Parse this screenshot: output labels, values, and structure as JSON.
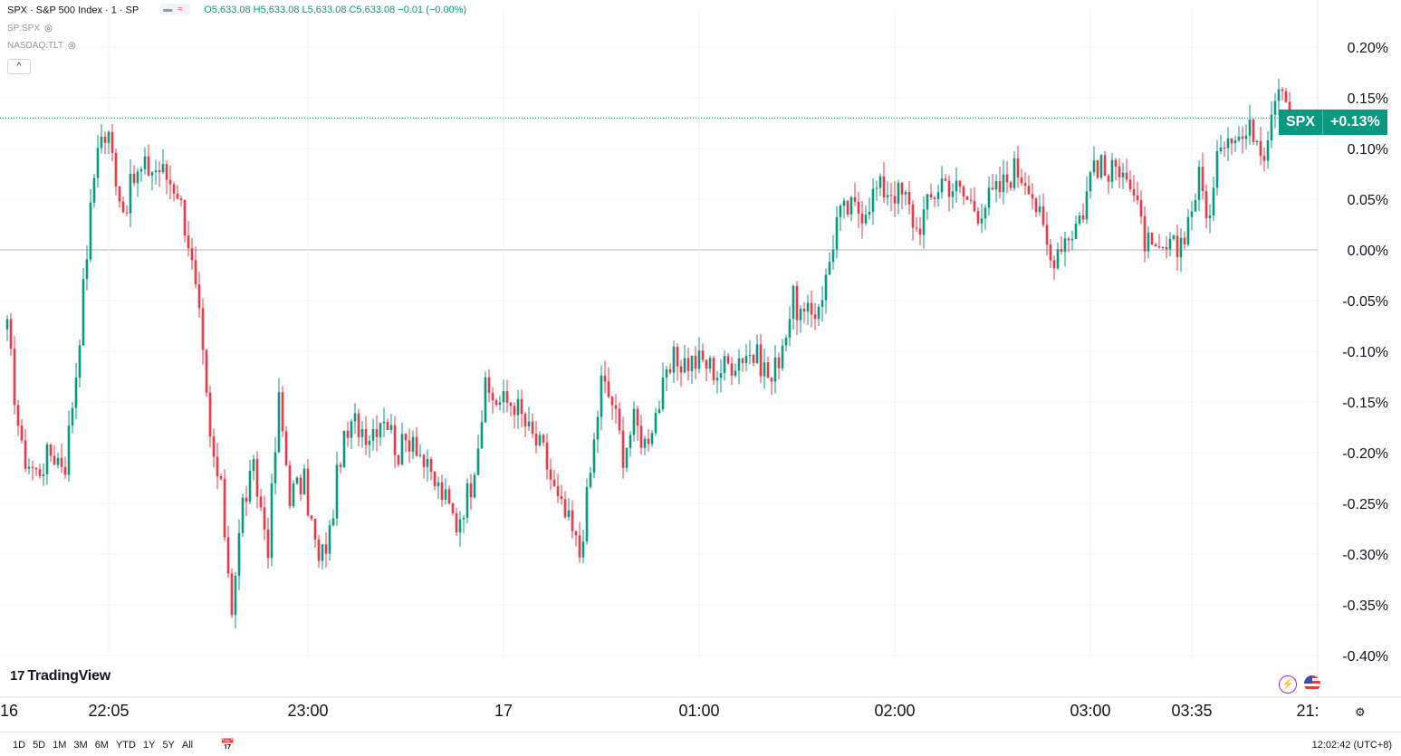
{
  "legend": {
    "symbol": "SPX · S&P 500 Index · 1 · SP",
    "ohlc": "O5,633.08 H5,633.08 L5,633.08 C5,633.08 −0.01 (−0.00%)",
    "pill": "≈",
    "sub1": "SP:SPX",
    "sub2": "NASDAQ:TLT",
    "collapse": "^"
  },
  "price_label": {
    "symbol": "SPX",
    "value": "+0.13%"
  },
  "logo": {
    "mark": "17",
    "name": "TradingView"
  },
  "ranges": [
    "1D",
    "5D",
    "1M",
    "3M",
    "6M",
    "YTD",
    "1Y",
    "5Y",
    "All"
  ],
  "clock": "12:02:42 (UTC+8)",
  "colors": {
    "up": "#089981",
    "down": "#f23645",
    "grid": "#f0f3fa",
    "text": "#131722"
  },
  "chart_data": {
    "type": "candlestick",
    "unit": "%",
    "ylim": [
      -0.42,
      0.215
    ],
    "y_ticks": [
      0.2,
      0.15,
      0.1,
      0.05,
      0.0,
      -0.05,
      -0.1,
      -0.15,
      -0.2,
      -0.25,
      -0.3,
      -0.35,
      -0.4
    ],
    "y_tick_labels": [
      "0.20%",
      "0.15%",
      "0.10%",
      "0.05%",
      "0.00%",
      "-0.05%",
      "-0.10%",
      "-0.15%",
      "-0.20%",
      "-0.25%",
      "-0.30%",
      "-0.35%",
      "-0.40%"
    ],
    "x_tick_labels": [
      {
        "label": "16",
        "bar": 0
      },
      {
        "label": "22:05",
        "bar": 28
      },
      {
        "label": "23:00",
        "bar": 83
      },
      {
        "label": "17",
        "bar": 137
      },
      {
        "label": "01:00",
        "bar": 191
      },
      {
        "label": "02:00",
        "bar": 245
      },
      {
        "label": "03:00",
        "bar": 299
      },
      {
        "label": "03:35",
        "bar": 327
      },
      {
        "label": "21:",
        "bar": 359
      }
    ],
    "last_value": 0.13,
    "key_closes": [
      [
        0,
        -0.08
      ],
      [
        4,
        -0.2
      ],
      [
        8,
        -0.22
      ],
      [
        12,
        -0.2
      ],
      [
        16,
        -0.21
      ],
      [
        19,
        -0.12
      ],
      [
        22,
        0.0
      ],
      [
        25,
        0.11
      ],
      [
        28,
        0.11
      ],
      [
        32,
        0.04
      ],
      [
        35,
        0.07
      ],
      [
        38,
        0.08
      ],
      [
        42,
        0.08
      ],
      [
        47,
        0.06
      ],
      [
        50,
        0.01
      ],
      [
        53,
        -0.07
      ],
      [
        56,
        -0.19
      ],
      [
        59,
        -0.24
      ],
      [
        62,
        -0.35
      ],
      [
        65,
        -0.25
      ],
      [
        68,
        -0.22
      ],
      [
        72,
        -0.29
      ],
      [
        75,
        -0.15
      ],
      [
        78,
        -0.24
      ],
      [
        82,
        -0.23
      ],
      [
        86,
        -0.31
      ],
      [
        89,
        -0.28
      ],
      [
        92,
        -0.2
      ],
      [
        96,
        -0.17
      ],
      [
        100,
        -0.18
      ],
      [
        104,
        -0.16
      ],
      [
        108,
        -0.2
      ],
      [
        112,
        -0.18
      ],
      [
        116,
        -0.22
      ],
      [
        120,
        -0.24
      ],
      [
        124,
        -0.27
      ],
      [
        128,
        -0.23
      ],
      [
        132,
        -0.14
      ],
      [
        136,
        -0.15
      ],
      [
        140,
        -0.15
      ],
      [
        144,
        -0.18
      ],
      [
        148,
        -0.2
      ],
      [
        152,
        -0.25
      ],
      [
        155,
        -0.27
      ],
      [
        158,
        -0.3
      ],
      [
        161,
        -0.22
      ],
      [
        164,
        -0.13
      ],
      [
        167,
        -0.15
      ],
      [
        170,
        -0.2
      ],
      [
        173,
        -0.17
      ],
      [
        176,
        -0.19
      ],
      [
        180,
        -0.15
      ],
      [
        184,
        -0.11
      ],
      [
        188,
        -0.11
      ],
      [
        192,
        -0.11
      ],
      [
        196,
        -0.12
      ],
      [
        200,
        -0.11
      ],
      [
        204,
        -0.1
      ],
      [
        208,
        -0.11
      ],
      [
        211,
        -0.13
      ],
      [
        214,
        -0.09
      ],
      [
        217,
        -0.05
      ],
      [
        220,
        -0.07
      ],
      [
        223,
        -0.06
      ],
      [
        226,
        -0.03
      ],
      [
        229,
        0.03
      ],
      [
        232,
        0.04
      ],
      [
        236,
        0.04
      ],
      [
        240,
        0.06
      ],
      [
        244,
        0.06
      ],
      [
        248,
        0.05
      ],
      [
        251,
        0.02
      ],
      [
        255,
        0.05
      ],
      [
        258,
        0.07
      ],
      [
        262,
        0.06
      ],
      [
        265,
        0.05
      ],
      [
        268,
        0.04
      ],
      [
        271,
        0.05
      ],
      [
        274,
        0.06
      ],
      [
        278,
        0.08
      ],
      [
        282,
        0.07
      ],
      [
        285,
        0.03
      ],
      [
        288,
        -0.01
      ],
      [
        291,
        0.01
      ],
      [
        294,
        0.02
      ],
      [
        297,
        0.04
      ],
      [
        300,
        0.09
      ],
      [
        304,
        0.07
      ],
      [
        308,
        0.09
      ],
      [
        311,
        0.05
      ],
      [
        314,
        0.01
      ],
      [
        317,
        -0.01
      ],
      [
        320,
        0.0
      ],
      [
        323,
        0.0
      ],
      [
        326,
        0.03
      ],
      [
        329,
        0.07
      ],
      [
        332,
        0.03
      ],
      [
        335,
        0.11
      ],
      [
        338,
        0.12
      ],
      [
        341,
        0.11
      ],
      [
        344,
        0.12
      ],
      [
        347,
        0.1
      ],
      [
        350,
        0.16
      ],
      [
        352,
        0.17
      ],
      [
        354,
        0.13
      ]
    ]
  }
}
